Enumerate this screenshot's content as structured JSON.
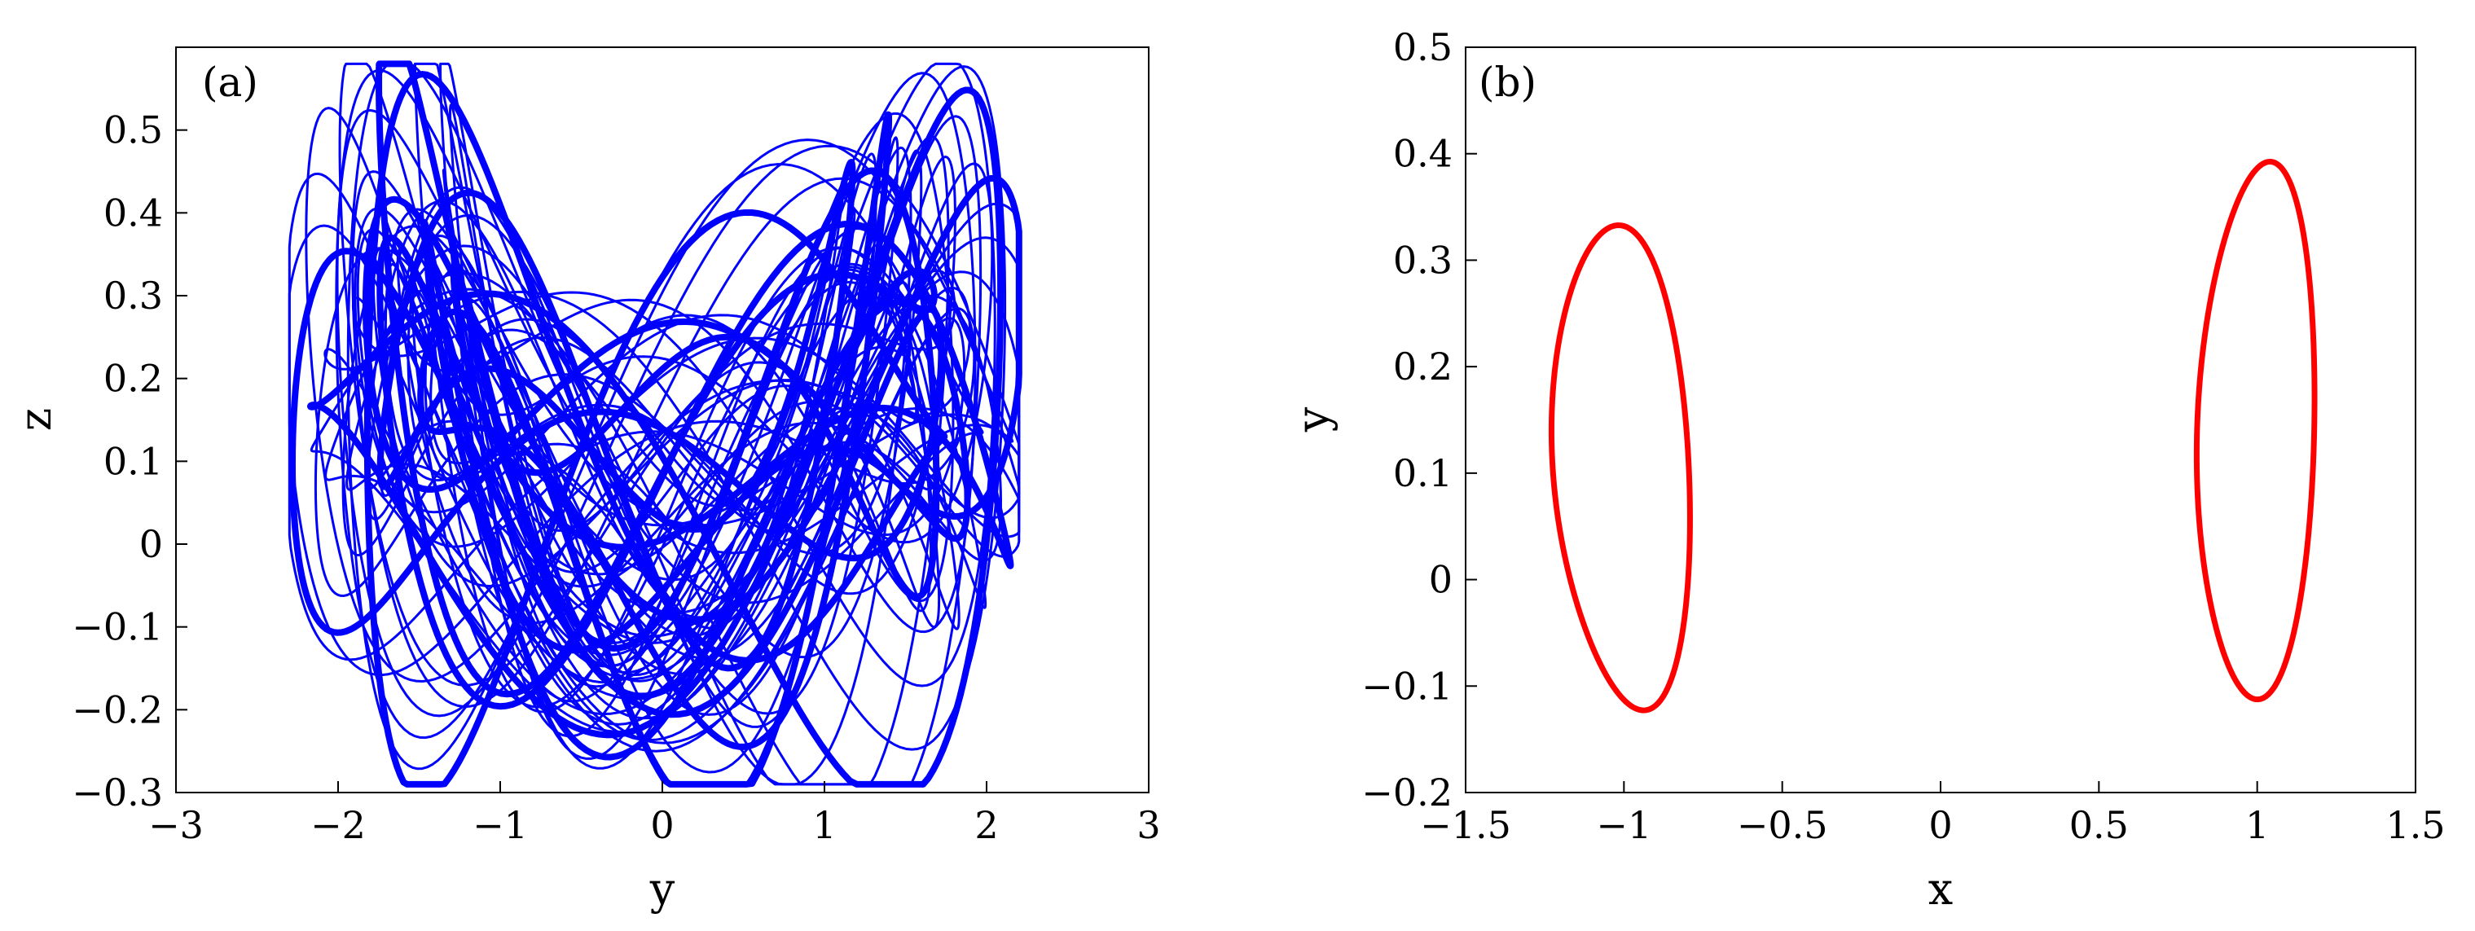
{
  "chart_data": [
    {
      "panel_label": "(a)",
      "type": "line",
      "xlabel": "y",
      "ylabel": "z",
      "xlim": [
        -3,
        3
      ],
      "ylim": [
        -0.3,
        0.6
      ],
      "xticks": [
        "−3",
        "−2",
        "−1",
        "0",
        "1",
        "2",
        "3"
      ],
      "yticks": [
        "−0.3",
        "−0.2",
        "−0.1",
        "0",
        "0.1",
        "0.2",
        "0.3",
        "0.4",
        "0.5"
      ],
      "xtick_values": [
        -3,
        -2,
        -1,
        0,
        1,
        2,
        3
      ],
      "ytick_values": [
        -0.3,
        -0.2,
        -0.1,
        0,
        0.1,
        0.2,
        0.3,
        0.4,
        0.5
      ],
      "grid": false,
      "color": "#0000ff",
      "series": [
        {
          "description_free": true,
          "x_range": [
            -2.3,
            2.2
          ],
          "y_range": [
            -0.29,
            0.58
          ]
        }
      ]
    },
    {
      "panel_label": "(b)",
      "type": "line",
      "xlabel": "x",
      "ylabel": "y",
      "xlim": [
        -1.5,
        1.5
      ],
      "ylim": [
        -0.2,
        0.5
      ],
      "xticks": [
        "−1.5",
        "−0.5",
        "0",
        "0.5",
        "1",
        "1.5"
      ],
      "xtick_labels_full": [
        "−1.5",
        "−1",
        "−0.5",
        "0",
        "0.5",
        "1",
        "1.5"
      ],
      "yticks": [
        "−0.2",
        "−0.1",
        "0",
        "0.1",
        "0.2",
        "0.3",
        "0.4",
        "0.5"
      ],
      "xtick_values": [
        -1.5,
        -1,
        -0.5,
        0,
        0.5,
        1,
        1.5
      ],
      "ytick_values": [
        -0.2,
        -0.1,
        0,
        0.1,
        0.2,
        0.3,
        0.4,
        0.5
      ],
      "grid": false,
      "color": "#ff0000",
      "series": [
        {
          "x_range": [
            -1.23,
            -0.8
          ],
          "y_range": [
            -0.12,
            0.33
          ]
        },
        {
          "x_range": [
            0.81,
            1.18
          ],
          "y_range": [
            -0.11,
            0.39
          ]
        }
      ]
    }
  ]
}
